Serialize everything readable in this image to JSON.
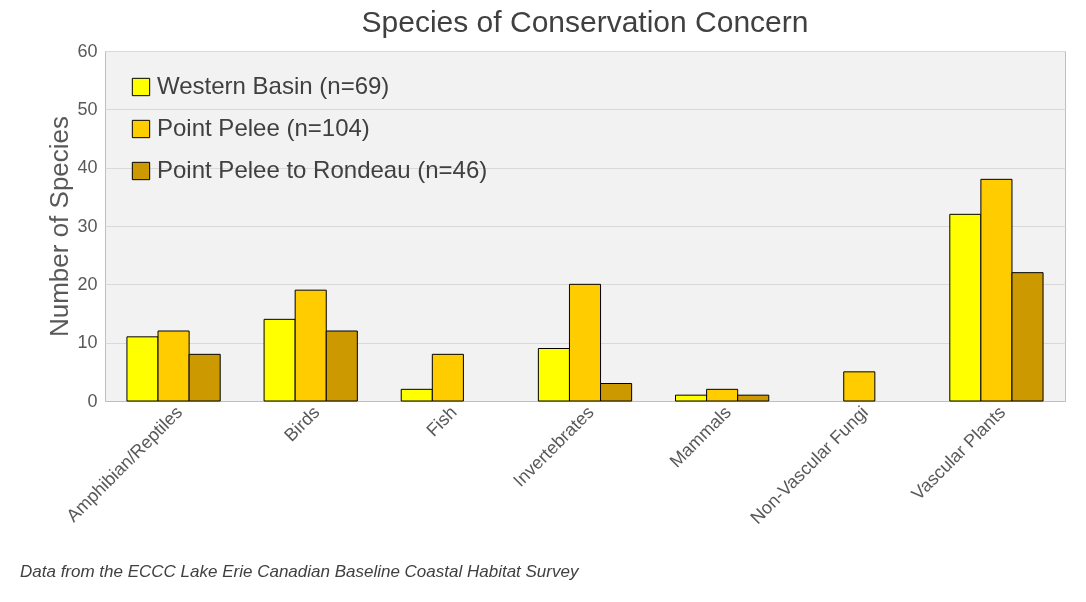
{
  "chart_data": {
    "type": "bar",
    "title": "Species of Conservation Concern",
    "ylabel": "Number of Species",
    "categories": [
      "Amphibian/Reptiles",
      "Birds",
      "Fish",
      "Invertebrates",
      "Mammals",
      "Non-Vascular Fungi",
      "Vascular Plants"
    ],
    "series": [
      {
        "name": "Western Basin (n=69)",
        "color": "#ffff00",
        "values": [
          11,
          14,
          2,
          9,
          1,
          null,
          32
        ]
      },
      {
        "name": "Point Pelee (n=104)",
        "color": "#ffcc00",
        "values": [
          12,
          19,
          8,
          20,
          2,
          5,
          38
        ]
      },
      {
        "name": "Point Pelee to Rondeau (n=46)",
        "color": "#cc9900",
        "values": [
          8,
          12,
          null,
          3,
          1,
          null,
          22
        ]
      }
    ],
    "ylim": [
      0,
      60
    ],
    "yticks": [
      0,
      10,
      20,
      30,
      40,
      50,
      60
    ],
    "grid": "y",
    "legend": "top left",
    "annotations": [
      "Data from the ECCC Lake Erie Canadian Baseline Coastal Habitat Survey"
    ]
  }
}
